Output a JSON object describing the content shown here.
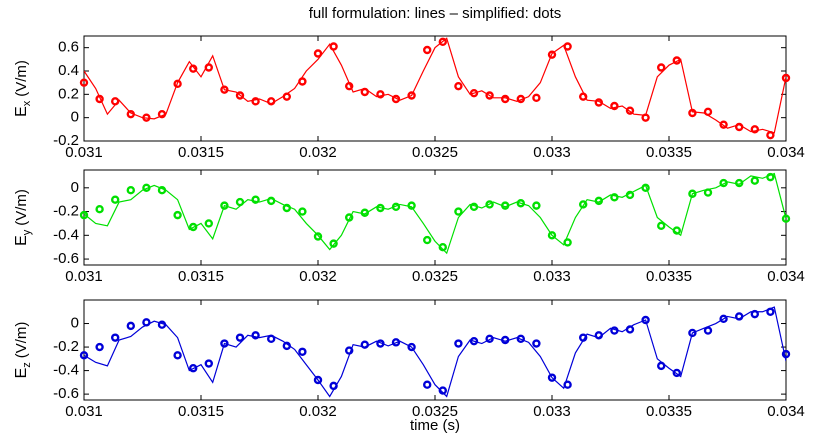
{
  "chart_data": [
    {
      "type": "line",
      "title": "full formulation: lines   –   simplified: dots",
      "ylabel": {
        "symbol": "E",
        "subscript": "x",
        "unit": "(V/m)"
      },
      "xlim": [
        0.031,
        0.034
      ],
      "xticks": [
        0.031,
        0.0315,
        0.032,
        0.0325,
        0.033,
        0.0335,
        0.034
      ],
      "ylim": [
        -0.2,
        0.7
      ],
      "yticks": [
        -0.2,
        0,
        0.2,
        0.4,
        0.6
      ],
      "x": [
        0.031,
        0.03105,
        0.0311,
        0.03115,
        0.0312,
        0.03125,
        0.0313,
        0.03135,
        0.0314,
        0.03145,
        0.0315,
        0.03155,
        0.0316,
        0.03165,
        0.0317,
        0.03175,
        0.0318,
        0.03185,
        0.0319,
        0.03195,
        0.032,
        0.03205,
        0.0321,
        0.03215,
        0.0322,
        0.03225,
        0.0323,
        0.03235,
        0.0324,
        0.03245,
        0.0325,
        0.03255,
        0.0326,
        0.03265,
        0.0327,
        0.03275,
        0.0328,
        0.03285,
        0.0329,
        0.03295,
        0.033,
        0.03305,
        0.0331,
        0.03315,
        0.0332,
        0.03325,
        0.0333,
        0.03335,
        0.0334,
        0.03345,
        0.0335,
        0.03355,
        0.0336,
        0.03365,
        0.0337,
        0.03375,
        0.0338,
        0.03385,
        0.0339,
        0.03395,
        0.034
      ],
      "series": [
        {
          "style": "line",
          "color": "#ff0000",
          "values": [
            0.4,
            0.25,
            0.03,
            0.15,
            0.04,
            0.0,
            -0.01,
            0.03,
            0.3,
            0.48,
            0.35,
            0.53,
            0.24,
            0.22,
            0.14,
            0.16,
            0.12,
            0.18,
            0.25,
            0.4,
            0.5,
            0.63,
            0.45,
            0.22,
            0.25,
            0.18,
            0.2,
            0.15,
            0.19,
            0.4,
            0.6,
            0.68,
            0.35,
            0.2,
            0.23,
            0.17,
            0.17,
            0.14,
            0.18,
            0.3,
            0.55,
            0.62,
            0.35,
            0.15,
            0.14,
            0.08,
            0.1,
            0.03,
            0.02,
            0.35,
            0.45,
            0.5,
            0.05,
            0.04,
            -0.02,
            -0.09,
            -0.06,
            -0.12,
            -0.1,
            -0.13,
            0.35
          ]
        },
        {
          "style": "dots",
          "color": "#ff0000",
          "x": [
            0.031,
            0.0310667,
            0.0311333,
            0.0312,
            0.0312667,
            0.0313333,
            0.0314,
            0.0314667,
            0.0315333,
            0.0316,
            0.0316667,
            0.0317333,
            0.0318,
            0.0318667,
            0.0319333,
            0.032,
            0.0320667,
            0.0321333,
            0.0322,
            0.0322667,
            0.0323333,
            0.0324,
            0.0324667,
            0.0325333,
            0.0326,
            0.0326667,
            0.0327333,
            0.0328,
            0.0328667,
            0.0329333,
            0.033,
            0.0330667,
            0.0331333,
            0.0332,
            0.0332667,
            0.0333333,
            0.0334,
            0.0334667,
            0.0335333,
            0.0336,
            0.0336667,
            0.0337333,
            0.0338,
            0.0338667,
            0.0339333,
            0.034
          ],
          "values": [
            0.3,
            0.16,
            0.14,
            0.03,
            0.0,
            0.03,
            0.29,
            0.42,
            0.43,
            0.24,
            0.19,
            0.14,
            0.14,
            0.18,
            0.31,
            0.55,
            0.61,
            0.27,
            0.22,
            0.2,
            0.16,
            0.19,
            0.58,
            0.65,
            0.27,
            0.21,
            0.19,
            0.16,
            0.16,
            0.17,
            0.54,
            0.61,
            0.18,
            0.13,
            0.1,
            0.06,
            0.0,
            0.43,
            0.49,
            0.04,
            0.05,
            -0.06,
            -0.08,
            -0.1,
            -0.15,
            0.34
          ]
        }
      ]
    },
    {
      "type": "line",
      "ylabel": {
        "symbol": "E",
        "subscript": "y",
        "unit": "(V/m)"
      },
      "xlim": [
        0.031,
        0.034
      ],
      "xticks": [
        0.031,
        0.0315,
        0.032,
        0.0325,
        0.033,
        0.0335,
        0.034
      ],
      "ylim": [
        -0.65,
        0.15
      ],
      "yticks": [
        -0.6,
        -0.4,
        -0.2,
        0
      ],
      "x": [
        0.031,
        0.03105,
        0.0311,
        0.03115,
        0.0312,
        0.03125,
        0.0313,
        0.03135,
        0.0314,
        0.03145,
        0.0315,
        0.03155,
        0.0316,
        0.03165,
        0.0317,
        0.03175,
        0.0318,
        0.03185,
        0.0319,
        0.03195,
        0.032,
        0.03205,
        0.0321,
        0.03215,
        0.0322,
        0.03225,
        0.0323,
        0.03235,
        0.0324,
        0.03245,
        0.0325,
        0.03255,
        0.0326,
        0.03265,
        0.0327,
        0.03275,
        0.0328,
        0.03285,
        0.0329,
        0.03295,
        0.033,
        0.03305,
        0.0331,
        0.03315,
        0.0332,
        0.03325,
        0.0333,
        0.03335,
        0.0334,
        0.03345,
        0.0335,
        0.03355,
        0.0336,
        0.03365,
        0.0337,
        0.03375,
        0.0338,
        0.03385,
        0.0339,
        0.03395,
        0.034
      ],
      "series": [
        {
          "style": "line",
          "color": "#00e000",
          "values": [
            -0.22,
            -0.3,
            -0.32,
            -0.12,
            -0.1,
            -0.02,
            0.02,
            -0.02,
            -0.1,
            -0.35,
            -0.3,
            -0.43,
            -0.15,
            -0.18,
            -0.1,
            -0.12,
            -0.09,
            -0.14,
            -0.18,
            -0.3,
            -0.4,
            -0.52,
            -0.4,
            -0.2,
            -0.22,
            -0.16,
            -0.18,
            -0.14,
            -0.16,
            -0.3,
            -0.45,
            -0.55,
            -0.25,
            -0.14,
            -0.17,
            -0.12,
            -0.16,
            -0.12,
            -0.15,
            -0.25,
            -0.4,
            -0.48,
            -0.25,
            -0.1,
            -0.12,
            -0.06,
            -0.08,
            -0.03,
            0.02,
            -0.25,
            -0.33,
            -0.4,
            -0.05,
            -0.02,
            0.0,
            0.05,
            0.03,
            0.1,
            0.08,
            0.12,
            -0.26
          ]
        },
        {
          "style": "dots",
          "color": "#00e000",
          "x": [
            0.031,
            0.0310667,
            0.0311333,
            0.0312,
            0.0312667,
            0.0313333,
            0.0314,
            0.0314667,
            0.0315333,
            0.0316,
            0.0316667,
            0.0317333,
            0.0318,
            0.0318667,
            0.0319333,
            0.032,
            0.0320667,
            0.0321333,
            0.0322,
            0.0322667,
            0.0323333,
            0.0324,
            0.0324667,
            0.0325333,
            0.0326,
            0.0326667,
            0.0327333,
            0.0328,
            0.0328667,
            0.0329333,
            0.033,
            0.0330667,
            0.0331333,
            0.0332,
            0.0332667,
            0.0333333,
            0.0334,
            0.0334667,
            0.0335333,
            0.0336,
            0.0336667,
            0.0337333,
            0.0338,
            0.0338667,
            0.0339333,
            0.034
          ],
          "values": [
            -0.23,
            -0.18,
            -0.1,
            -0.02,
            0.0,
            -0.02,
            -0.23,
            -0.33,
            -0.3,
            -0.15,
            -0.12,
            -0.1,
            -0.11,
            -0.17,
            -0.2,
            -0.41,
            -0.47,
            -0.25,
            -0.21,
            -0.17,
            -0.16,
            -0.15,
            -0.44,
            -0.5,
            -0.2,
            -0.16,
            -0.14,
            -0.15,
            -0.13,
            -0.15,
            -0.4,
            -0.46,
            -0.14,
            -0.11,
            -0.08,
            -0.06,
            0.0,
            -0.32,
            -0.36,
            -0.05,
            -0.04,
            0.04,
            0.04,
            0.06,
            0.09,
            -0.26
          ]
        }
      ]
    },
    {
      "type": "line",
      "xlabel": "time (s)",
      "ylabel": {
        "symbol": "E",
        "subscript": "z",
        "unit": "(V/m)"
      },
      "xlim": [
        0.031,
        0.034
      ],
      "xticks": [
        0.031,
        0.0315,
        0.032,
        0.0325,
        0.033,
        0.0335,
        0.034
      ],
      "ylim": [
        -0.65,
        0.2
      ],
      "yticks": [
        -0.6,
        -0.4,
        -0.2,
        0
      ],
      "x": [
        0.031,
        0.03105,
        0.0311,
        0.03115,
        0.0312,
        0.03125,
        0.0313,
        0.03135,
        0.0314,
        0.03145,
        0.0315,
        0.03155,
        0.0316,
        0.03165,
        0.0317,
        0.03175,
        0.0318,
        0.03185,
        0.0319,
        0.03195,
        0.032,
        0.03205,
        0.0321,
        0.03215,
        0.0322,
        0.03225,
        0.0323,
        0.03235,
        0.0324,
        0.03245,
        0.0325,
        0.03255,
        0.0326,
        0.03265,
        0.0327,
        0.03275,
        0.0328,
        0.03285,
        0.0329,
        0.03295,
        0.033,
        0.03305,
        0.0331,
        0.03315,
        0.0332,
        0.03325,
        0.0333,
        0.03335,
        0.0334,
        0.03345,
        0.0335,
        0.03355,
        0.0336,
        0.03365,
        0.0337,
        0.03375,
        0.0338,
        0.03385,
        0.0339,
        0.03395,
        0.034
      ],
      "series": [
        {
          "style": "line",
          "color": "#0000d8",
          "values": [
            -0.27,
            -0.33,
            -0.36,
            -0.14,
            -0.11,
            -0.03,
            0.02,
            -0.01,
            -0.12,
            -0.4,
            -0.35,
            -0.5,
            -0.17,
            -0.2,
            -0.1,
            -0.12,
            -0.1,
            -0.15,
            -0.22,
            -0.35,
            -0.48,
            -0.62,
            -0.45,
            -0.18,
            -0.2,
            -0.15,
            -0.19,
            -0.15,
            -0.2,
            -0.35,
            -0.52,
            -0.62,
            -0.28,
            -0.14,
            -0.17,
            -0.12,
            -0.15,
            -0.12,
            -0.16,
            -0.28,
            -0.46,
            -0.55,
            -0.25,
            -0.09,
            -0.12,
            -0.04,
            -0.07,
            -0.01,
            0.03,
            -0.3,
            -0.38,
            -0.45,
            -0.08,
            -0.04,
            0.0,
            0.06,
            0.04,
            0.1,
            0.1,
            0.14,
            -0.32
          ]
        },
        {
          "style": "dots",
          "color": "#0000d8",
          "x": [
            0.031,
            0.0310667,
            0.0311333,
            0.0312,
            0.0312667,
            0.0313333,
            0.0314,
            0.0314667,
            0.0315333,
            0.0316,
            0.0316667,
            0.0317333,
            0.0318,
            0.0318667,
            0.0319333,
            0.032,
            0.0320667,
            0.0321333,
            0.0322,
            0.0322667,
            0.0323333,
            0.0324,
            0.0324667,
            0.0325333,
            0.0326,
            0.0326667,
            0.0327333,
            0.0328,
            0.0328667,
            0.0329333,
            0.033,
            0.0330667,
            0.0331333,
            0.0332,
            0.0332667,
            0.0333333,
            0.0334,
            0.0334667,
            0.0335333,
            0.0336,
            0.0336667,
            0.0337333,
            0.0338,
            0.0338667,
            0.0339333,
            0.034
          ],
          "values": [
            -0.27,
            -0.2,
            -0.12,
            -0.02,
            0.01,
            -0.01,
            -0.27,
            -0.38,
            -0.34,
            -0.17,
            -0.12,
            -0.1,
            -0.13,
            -0.19,
            -0.24,
            -0.48,
            -0.53,
            -0.23,
            -0.18,
            -0.17,
            -0.16,
            -0.2,
            -0.52,
            -0.57,
            -0.17,
            -0.15,
            -0.13,
            -0.14,
            -0.13,
            -0.17,
            -0.46,
            -0.52,
            -0.12,
            -0.1,
            -0.06,
            -0.05,
            0.03,
            -0.36,
            -0.42,
            -0.08,
            -0.06,
            0.04,
            0.06,
            0.08,
            0.1,
            -0.26
          ]
        }
      ]
    }
  ]
}
